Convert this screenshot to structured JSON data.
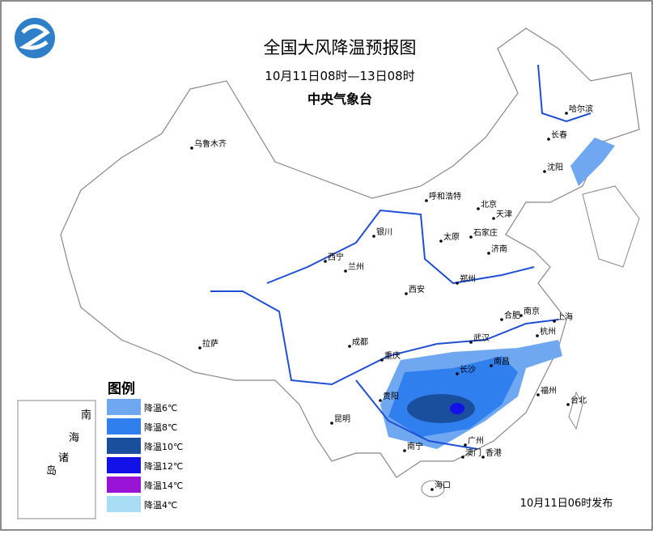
{
  "header": {
    "title": "全国大风降温预报图",
    "subtitle": "10月11日08时—13日08时",
    "org": "中央气象台"
  },
  "cities": [
    "乌鲁木齐",
    "哈尔滨",
    "长春",
    "沈阳",
    "呼和浩特",
    "北京",
    "天津",
    "石家庄",
    "太原",
    "银川",
    "济南",
    "西宁",
    "兰州",
    "郑州",
    "西安",
    "南京",
    "合肥",
    "上海",
    "杭州",
    "武汉",
    "成都",
    "拉萨",
    "重庆",
    "长沙",
    "南昌",
    "贵阳",
    "福州",
    "台北",
    "昆明",
    "南宁",
    "广州",
    "澳门",
    "香港",
    "海口"
  ],
  "legend": {
    "title": "图例",
    "items": [
      {
        "label": "降温6℃",
        "color": "#6fa8f0"
      },
      {
        "label": "降温8℃",
        "color": "#2f7fef"
      },
      {
        "label": "降温10℃",
        "color": "#1a4f9e"
      },
      {
        "label": "降温12℃",
        "color": "#1212e8"
      },
      {
        "label": "降温14℃",
        "color": "#9a14d8"
      },
      {
        "label": "降温4℃",
        "color": "#a9dcf5"
      }
    ]
  },
  "inset": {
    "labels": [
      "南",
      "海",
      "诸",
      "岛"
    ]
  },
  "footer": {
    "issued": "10月11日06时发布"
  }
}
